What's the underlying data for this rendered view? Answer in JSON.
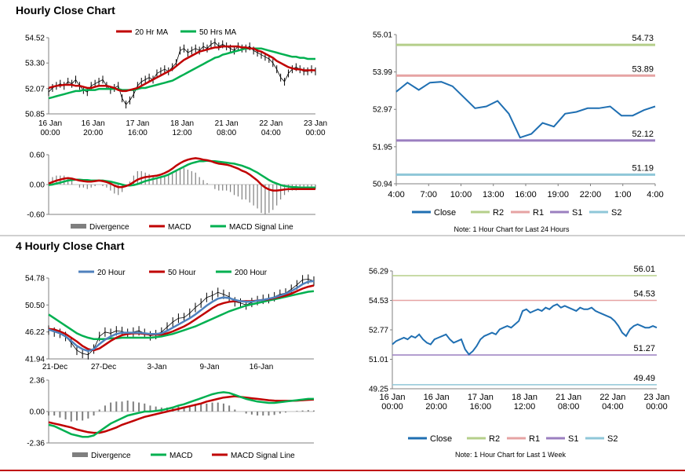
{
  "sections": {
    "hourly_title": "Hourly Close Chart",
    "four_hourly_title": "4 Hourly Close Chart"
  },
  "colors": {
    "ma20": "#C00000",
    "ma50": "#00B050",
    "ma200": "#00B050",
    "hour20": "#4F81BD",
    "price": "#000000",
    "divergence": "#7F7F7F",
    "close": "#1F6FB2",
    "r2": "#B5CF8A",
    "r1": "#E6A3A3",
    "s1": "#9B7FC0",
    "s2": "#8FC7D8"
  },
  "chart_data": [
    {
      "id": "hourly_price",
      "type": "line",
      "legend": [
        "20 Hr MA",
        "50 Hrs MA"
      ],
      "yticks": [
        "54.52",
        "53.30",
        "52.07",
        "50.85"
      ],
      "ylim": [
        50.85,
        54.52
      ],
      "xlabels": [
        [
          "16 Jan",
          "00:00"
        ],
        [
          "16 Jan",
          "20:00"
        ],
        [
          "17 Jan",
          "16:00"
        ],
        [
          "18 Jan",
          "12:00"
        ],
        [
          "21 Jan",
          "08:00"
        ],
        [
          "22 Jan",
          "04:00"
        ],
        [
          "23 Jan",
          "00:00"
        ]
      ],
      "price": [
        51.9,
        52.1,
        52.2,
        52.3,
        52.2,
        52.4,
        52.3,
        52.5,
        52.2,
        52.0,
        51.9,
        52.2,
        52.3,
        52.4,
        52.5,
        52.2,
        52.0,
        52.1,
        52.2,
        51.6,
        51.3,
        51.5,
        51.8,
        52.2,
        52.4,
        52.5,
        52.6,
        52.5,
        52.8,
        52.9,
        53.0,
        52.9,
        53.1,
        53.3,
        53.9,
        54.0,
        53.8,
        53.9,
        54.0,
        53.9,
        54.1,
        54.0,
        54.2,
        54.3,
        54.1,
        54.2,
        54.1,
        54.0,
        53.9,
        54.1,
        54.0,
        54.0,
        54.1,
        53.9,
        53.8,
        53.7,
        53.6,
        53.5,
        53.3,
        53.0,
        52.6,
        52.4,
        52.8,
        53.0,
        53.1,
        53.0,
        52.9,
        52.9,
        53.0,
        52.9
      ],
      "ma20": [
        52.1,
        52.15,
        52.2,
        52.22,
        52.25,
        52.25,
        52.25,
        52.2,
        52.2,
        52.15,
        52.1,
        52.1,
        52.15,
        52.2,
        52.2,
        52.2,
        52.15,
        52.1,
        52.0,
        51.95,
        51.95,
        52.0,
        52.05,
        52.1,
        52.2,
        52.3,
        52.4,
        52.5,
        52.6,
        52.7,
        52.8,
        52.9,
        53.0,
        53.15,
        53.3,
        53.45,
        53.55,
        53.65,
        53.75,
        53.85,
        53.9,
        53.95,
        54.0,
        54.05,
        54.05,
        54.1,
        54.1,
        54.1,
        54.1,
        54.1,
        54.05,
        54.05,
        54.0,
        54.0,
        53.9,
        53.85,
        53.75,
        53.65,
        53.55,
        53.4,
        53.3,
        53.2,
        53.1,
        53.05,
        53.0,
        53.0,
        52.95,
        52.95,
        52.95,
        52.95
      ],
      "ma50": [
        51.6,
        51.65,
        51.7,
        51.75,
        51.8,
        51.85,
        51.9,
        51.95,
        51.95,
        52.0,
        52.0,
        52.0,
        52.0,
        52.05,
        52.05,
        52.05,
        52.05,
        52.05,
        52.05,
        52.0,
        52.0,
        52.0,
        52.0,
        52.05,
        52.1,
        52.1,
        52.15,
        52.2,
        52.25,
        52.3,
        52.35,
        52.4,
        52.45,
        52.55,
        52.65,
        52.75,
        52.85,
        52.95,
        53.05,
        53.15,
        53.25,
        53.35,
        53.45,
        53.55,
        53.6,
        53.7,
        53.75,
        53.8,
        53.85,
        53.9,
        53.95,
        54.0,
        54.0,
        54.0,
        54.0,
        54.0,
        53.95,
        53.9,
        53.85,
        53.8,
        53.75,
        53.7,
        53.65,
        53.6,
        53.6,
        53.55,
        53.55,
        53.5,
        53.5,
        53.5
      ]
    },
    {
      "id": "hourly_macd",
      "type": "line",
      "legend": [
        "Divergence",
        "MACD",
        "MACD Signal Line"
      ],
      "yticks": [
        "0.60",
        "0.00",
        "-0.60"
      ],
      "ylim": [
        -0.6,
        0.6
      ],
      "macd": [
        0.02,
        0.05,
        0.08,
        0.1,
        0.12,
        0.13,
        0.12,
        0.1,
        0.08,
        0.07,
        0.06,
        0.06,
        0.07,
        0.08,
        0.07,
        0.05,
        0.02,
        -0.02,
        -0.05,
        -0.05,
        -0.03,
        0.0,
        0.05,
        0.1,
        0.13,
        0.15,
        0.16,
        0.17,
        0.18,
        0.2,
        0.23,
        0.27,
        0.32,
        0.38,
        0.43,
        0.47,
        0.5,
        0.52,
        0.53,
        0.52,
        0.5,
        0.49,
        0.47,
        0.44,
        0.42,
        0.41,
        0.4,
        0.38,
        0.35,
        0.32,
        0.28,
        0.25,
        0.2,
        0.14,
        0.08,
        0.0,
        -0.06,
        -0.1,
        -0.12,
        -0.12,
        -0.11,
        -0.1,
        -0.09,
        -0.09,
        -0.09,
        -0.09,
        -0.09,
        -0.09,
        -0.09,
        -0.09
      ],
      "signal": [
        -0.01,
        0.0,
        0.02,
        0.04,
        0.06,
        0.08,
        0.09,
        0.1,
        0.1,
        0.09,
        0.09,
        0.08,
        0.08,
        0.08,
        0.08,
        0.07,
        0.06,
        0.04,
        0.02,
        0.0,
        -0.02,
        -0.02,
        -0.01,
        0.01,
        0.04,
        0.07,
        0.09,
        0.11,
        0.13,
        0.15,
        0.17,
        0.2,
        0.24,
        0.28,
        0.32,
        0.36,
        0.4,
        0.43,
        0.45,
        0.47,
        0.47,
        0.48,
        0.47,
        0.47,
        0.46,
        0.45,
        0.44,
        0.43,
        0.42,
        0.4,
        0.38,
        0.35,
        0.32,
        0.28,
        0.24,
        0.19,
        0.14,
        0.09,
        0.05,
        0.02,
        -0.01,
        -0.03,
        -0.04,
        -0.05,
        -0.05,
        -0.06,
        -0.06,
        -0.06,
        -0.06,
        -0.06
      ]
    },
    {
      "id": "hourly_levels",
      "type": "line",
      "legend": [
        "Close",
        "R2",
        "R1",
        "S1",
        "S2"
      ],
      "note": "Note: 1 Hour Chart for Last 24 Hours",
      "yticks": [
        "55.01",
        "53.99",
        "52.97",
        "51.95",
        "50.94"
      ],
      "ylim": [
        50.94,
        55.01
      ],
      "xlabels": [
        "4:00",
        "7:00",
        "10:00",
        "13:00",
        "16:00",
        "19:00",
        "22:00",
        "1:00",
        "4:00"
      ],
      "close": [
        53.45,
        53.7,
        53.5,
        53.7,
        53.72,
        53.6,
        53.3,
        53.0,
        53.05,
        53.2,
        52.85,
        52.2,
        52.3,
        52.6,
        52.5,
        52.85,
        52.9,
        53.0,
        53.0,
        53.05,
        52.8,
        52.8,
        52.95,
        53.05
      ],
      "levels": {
        "R2": 54.73,
        "R1": 53.89,
        "S1": 52.12,
        "S2": 51.19
      },
      "level_labels": {
        "R2": "54.73",
        "R1": "53.89",
        "S1": "52.12",
        "S2": "51.19"
      }
    },
    {
      "id": "four_hourly_price",
      "type": "line",
      "legend": [
        "20 Hour",
        "50 Hour",
        "200 Hour"
      ],
      "yticks": [
        "54.78",
        "50.50",
        "46.22",
        "41.94"
      ],
      "ylim": [
        41.94,
        54.78
      ],
      "xlabels": [
        "21-Dec",
        "27-Dec",
        "3-Jan",
        "9-Jan",
        "16-Jan"
      ],
      "price": [
        46.5,
        46.2,
        46.0,
        45.5,
        44.5,
        43.3,
        42.8,
        42.6,
        43.5,
        45.5,
        46.2,
        46.0,
        46.4,
        46.3,
        46.0,
        46.2,
        46.4,
        46.0,
        45.6,
        45.8,
        46.2,
        47.0,
        47.8,
        48.4,
        48.5,
        49.2,
        50.1,
        50.8,
        51.7,
        52.0,
        52.5,
        52.2,
        51.8,
        51.0,
        50.8,
        50.5,
        50.9,
        51.2,
        51.4,
        51.5,
        51.8,
        52.2,
        52.4,
        53.0,
        53.7,
        54.5,
        54.6,
        54.3
      ],
      "hour20": [
        46.6,
        46.3,
        46.0,
        45.5,
        44.8,
        44.0,
        43.5,
        43.2,
        43.5,
        44.3,
        45.0,
        45.5,
        45.9,
        46.1,
        46.1,
        46.1,
        46.1,
        46.0,
        45.9,
        45.9,
        46.0,
        46.4,
        46.9,
        47.4,
        47.9,
        48.4,
        49.0,
        49.7,
        50.4,
        51.0,
        51.5,
        51.7,
        51.6,
        51.3,
        51.1,
        51.0,
        51.0,
        51.2,
        51.3,
        51.5,
        51.7,
        52.0,
        52.3,
        52.7,
        53.2,
        53.8,
        54.2,
        54.3
      ],
      "hour50": [
        46.7,
        46.6,
        46.3,
        45.9,
        45.3,
        44.7,
        44.0,
        43.5,
        43.3,
        43.6,
        44.2,
        44.8,
        45.3,
        45.7,
        45.9,
        46.0,
        46.0,
        45.9,
        45.8,
        45.8,
        45.8,
        46.0,
        46.3,
        46.7,
        47.1,
        47.6,
        48.2,
        48.8,
        49.4,
        50.0,
        50.5,
        50.8,
        51.0,
        51.1,
        51.1,
        51.1,
        51.1,
        51.2,
        51.3,
        51.4,
        51.6,
        51.8,
        52.0,
        52.3,
        52.7,
        53.1,
        53.4,
        53.6
      ],
      "hour200": [
        49.0,
        48.4,
        47.8,
        47.2,
        46.6,
        46.0,
        45.6,
        45.3,
        45.1,
        45.1,
        45.1,
        45.2,
        45.2,
        45.3,
        45.3,
        45.3,
        45.3,
        45.3,
        45.3,
        45.4,
        45.5,
        45.7,
        45.9,
        46.2,
        46.5,
        46.8,
        47.1,
        47.5,
        47.9,
        48.3,
        48.7,
        49.1,
        49.5,
        49.8,
        50.1,
        50.4,
        50.6,
        50.8,
        51.0,
        51.2,
        51.4,
        51.6,
        51.8,
        52.0,
        52.2,
        52.4,
        52.6,
        52.7
      ]
    },
    {
      "id": "four_hourly_macd",
      "type": "line",
      "legend": [
        "Divergence",
        "MACD",
        "MACD Signal Line"
      ],
      "yticks": [
        "2.36",
        "0.00",
        "-2.36"
      ],
      "ylim": [
        -2.36,
        2.36
      ],
      "macd": [
        -1.0,
        -1.1,
        -1.3,
        -1.5,
        -1.7,
        -1.8,
        -1.9,
        -1.9,
        -1.8,
        -1.5,
        -1.2,
        -0.9,
        -0.7,
        -0.5,
        -0.3,
        -0.2,
        -0.1,
        0.0,
        0.0,
        0.05,
        0.1,
        0.2,
        0.3,
        0.45,
        0.55,
        0.7,
        0.85,
        1.0,
        1.15,
        1.3,
        1.4,
        1.45,
        1.4,
        1.25,
        1.1,
        0.95,
        0.85,
        0.75,
        0.7,
        0.65,
        0.65,
        0.7,
        0.75,
        0.8,
        0.85,
        0.9,
        0.95,
        0.95
      ],
      "signal": [
        -0.8,
        -0.9,
        -1.0,
        -1.1,
        -1.2,
        -1.35,
        -1.45,
        -1.55,
        -1.6,
        -1.6,
        -1.5,
        -1.35,
        -1.2,
        -1.0,
        -0.85,
        -0.7,
        -0.55,
        -0.4,
        -0.3,
        -0.2,
        -0.1,
        0.0,
        0.1,
        0.2,
        0.3,
        0.4,
        0.5,
        0.6,
        0.75,
        0.85,
        0.95,
        1.05,
        1.1,
        1.15,
        1.1,
        1.05,
        1.0,
        0.95,
        0.9,
        0.85,
        0.82,
        0.8,
        0.8,
        0.8,
        0.82,
        0.85,
        0.88,
        0.9
      ]
    },
    {
      "id": "four_hourly_levels",
      "type": "line",
      "legend": [
        "Close",
        "R2",
        "R1",
        "S1",
        "S2"
      ],
      "note": "Note: 1 Hour Chart for Last 1 Week",
      "yticks": [
        "56.29",
        "54.53",
        "52.77",
        "51.01",
        "49.25"
      ],
      "ylim": [
        49.25,
        56.29
      ],
      "xlabels": [
        [
          "16 Jan",
          "00:00"
        ],
        [
          "16 Jan",
          "20:00"
        ],
        [
          "17 Jan",
          "16:00"
        ],
        [
          "18 Jan",
          "12:00"
        ],
        [
          "21 Jan",
          "08:00"
        ],
        [
          "22 Jan",
          "04:00"
        ],
        [
          "23 Jan",
          "00:00"
        ]
      ],
      "close": [
        51.9,
        52.1,
        52.2,
        52.3,
        52.2,
        52.4,
        52.3,
        52.5,
        52.2,
        52.0,
        51.9,
        52.2,
        52.3,
        52.4,
        52.5,
        52.2,
        52.0,
        52.1,
        52.2,
        51.6,
        51.3,
        51.5,
        51.8,
        52.2,
        52.4,
        52.5,
        52.6,
        52.5,
        52.8,
        52.9,
        53.0,
        52.9,
        53.1,
        53.3,
        53.9,
        54.0,
        53.8,
        53.9,
        54.0,
        53.9,
        54.1,
        54.0,
        54.2,
        54.3,
        54.1,
        54.2,
        54.1,
        54.0,
        53.9,
        54.1,
        54.0,
        54.0,
        54.1,
        53.9,
        53.8,
        53.7,
        53.6,
        53.5,
        53.3,
        53.0,
        52.6,
        52.4,
        52.8,
        53.0,
        53.1,
        53.0,
        52.9,
        52.9,
        53.0,
        52.9
      ],
      "levels": {
        "R2": 56.01,
        "R1": 54.53,
        "S1": 51.27,
        "S2": 49.49
      },
      "level_labels": {
        "R2": "56.01",
        "R1": "54.53",
        "S1": "51.27",
        "S2": "49.49"
      }
    }
  ]
}
